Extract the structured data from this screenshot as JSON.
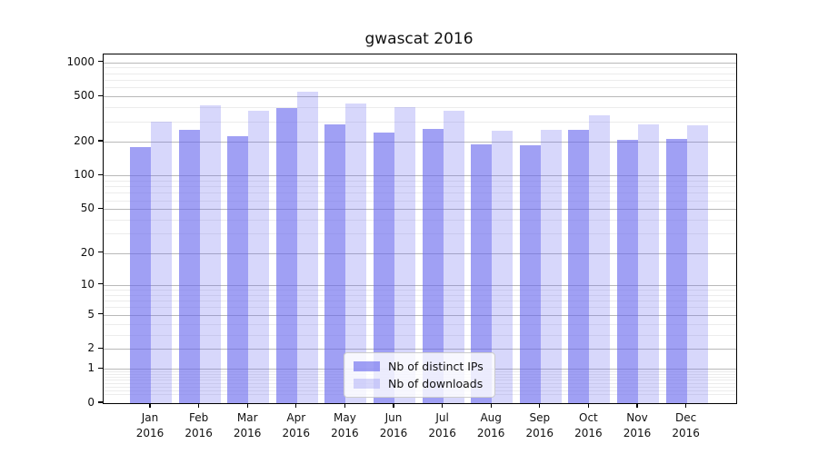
{
  "title": "gwascat 2016",
  "colors": {
    "bar_ips": "rgba(102,102,238,0.62)",
    "bar_downloads": "rgba(102,102,238,0.26)",
    "grid_major": "#b9b9b9",
    "grid_minor": "#ececec",
    "spine": "#000000",
    "text": "#111111"
  },
  "legend": {
    "items": [
      {
        "label": "Nb of distinct IPs",
        "series": "ips",
        "swatch": "bar_ips"
      },
      {
        "label": "Nb of downloads",
        "series": "downloads",
        "swatch": "bar_downloads"
      }
    ]
  },
  "chart_data": {
    "type": "bar",
    "title": "gwascat 2016",
    "categories": [
      "Jan 2016",
      "Feb 2016",
      "Mar 2016",
      "Apr 2016",
      "May 2016",
      "Jun 2016",
      "Jul 2016",
      "Aug 2016",
      "Sep 2016",
      "Oct 2016",
      "Nov 2016",
      "Dec 2016"
    ],
    "series": [
      {
        "name": "Nb of distinct IPs",
        "values": [
          178,
          255,
          224,
          397,
          283,
          241,
          260,
          188,
          184,
          254,
          207,
          209
        ]
      },
      {
        "name": "Nb of downloads",
        "values": [
          300,
          420,
          377,
          552,
          430,
          404,
          373,
          251,
          256,
          343,
          285,
          278
        ]
      }
    ],
    "xlabel": "",
    "ylabel": "",
    "yscale": "log10(value+1)",
    "yticks": [
      0,
      1,
      2,
      5,
      10,
      20,
      50,
      100,
      200,
      500,
      1000
    ],
    "ylim": [
      0,
      1170
    ],
    "grid": "horizontal, major + minor",
    "legend_position": "lower center"
  }
}
